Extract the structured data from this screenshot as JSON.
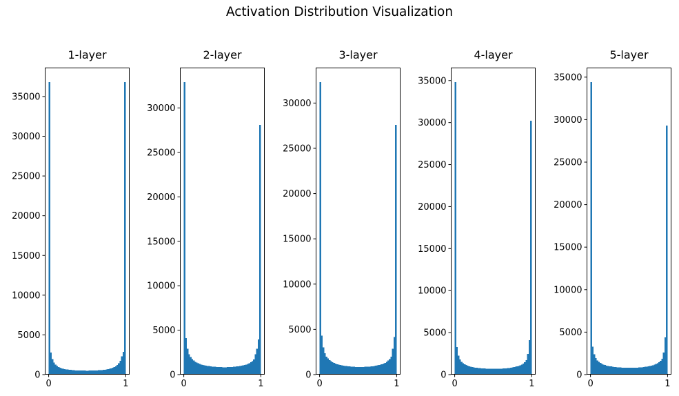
{
  "figure": {
    "title": "Activation Distribution Visualization",
    "background_color": "#ffffff",
    "bar_color": "#1f77b4",
    "frame_color": "#000000",
    "tick_color": "#000000",
    "text_color": "#000000"
  },
  "chart_data": [
    {
      "type": "bar",
      "subtype": "histogram",
      "title": "1-layer",
      "xlabel": "",
      "ylabel": "",
      "grid": false,
      "legend": null,
      "bin_start": 0.0,
      "bin_width": 0.02,
      "xlim": [
        -0.05,
        1.05
      ],
      "ylim": [
        0,
        38640
      ],
      "xticks": [
        0,
        1
      ],
      "yticks": [
        0,
        5000,
        10000,
        15000,
        20000,
        25000,
        30000,
        35000
      ],
      "values": [
        36800,
        2800,
        1950,
        1500,
        1250,
        1080,
        960,
        870,
        800,
        745,
        700,
        665,
        635,
        610,
        590,
        570,
        555,
        540,
        530,
        520,
        512,
        506,
        502,
        500,
        498,
        498,
        500,
        503,
        508,
        515,
        523,
        533,
        545,
        560,
        578,
        600,
        625,
        655,
        690,
        735,
        790,
        855,
        940,
        1050,
        1200,
        1420,
        1750,
        2300,
        2850,
        36800
      ]
    },
    {
      "type": "bar",
      "subtype": "histogram",
      "title": "2-layer",
      "xlabel": "",
      "ylabel": "",
      "grid": false,
      "legend": null,
      "bin_start": 0.0,
      "bin_width": 0.02,
      "xlim": [
        -0.05,
        1.05
      ],
      "ylim": [
        0,
        34545
      ],
      "xticks": [
        0,
        1
      ],
      "yticks": [
        0,
        5000,
        10000,
        15000,
        20000,
        25000,
        30000
      ],
      "values": [
        32900,
        4100,
        2900,
        2300,
        1980,
        1750,
        1580,
        1450,
        1350,
        1270,
        1200,
        1140,
        1090,
        1050,
        1015,
        985,
        955,
        930,
        910,
        890,
        875,
        860,
        850,
        842,
        836,
        832,
        830,
        832,
        836,
        843,
        852,
        864,
        878,
        895,
        915,
        940,
        968,
        1000,
        1040,
        1085,
        1140,
        1205,
        1285,
        1385,
        1520,
        1700,
        2300,
        2900,
        3950,
        28100
      ]
    },
    {
      "type": "bar",
      "subtype": "histogram",
      "title": "3-layer",
      "xlabel": "",
      "ylabel": "",
      "grid": false,
      "legend": null,
      "bin_start": 0.0,
      "bin_width": 0.02,
      "xlim": [
        -0.05,
        1.05
      ],
      "ylim": [
        0,
        33915
      ],
      "xticks": [
        0,
        1
      ],
      "yticks": [
        0,
        5000,
        10000,
        15000,
        20000,
        25000,
        30000
      ],
      "values": [
        32300,
        4300,
        3000,
        2350,
        2000,
        1780,
        1600,
        1470,
        1370,
        1290,
        1220,
        1160,
        1110,
        1065,
        1030,
        1000,
        970,
        945,
        925,
        905,
        890,
        875,
        865,
        857,
        851,
        848,
        846,
        848,
        852,
        858,
        868,
        880,
        894,
        912,
        932,
        956,
        985,
        1018,
        1058,
        1105,
        1160,
        1228,
        1310,
        1413,
        1545,
        1720,
        1965,
        2860,
        4150,
        27600
      ]
    },
    {
      "type": "bar",
      "subtype": "histogram",
      "title": "4-layer",
      "xlabel": "",
      "ylabel": "",
      "grid": false,
      "legend": null,
      "bin_start": 0.0,
      "bin_width": 0.02,
      "xlim": [
        -0.05,
        1.05
      ],
      "ylim": [
        0,
        36540
      ],
      "xticks": [
        0,
        1
      ],
      "yticks": [
        0,
        5000,
        10000,
        15000,
        20000,
        25000,
        30000,
        35000
      ],
      "values": [
        34800,
        3300,
        2250,
        1800,
        1530,
        1360,
        1230,
        1130,
        1060,
        1000,
        950,
        905,
        870,
        840,
        812,
        790,
        770,
        752,
        737,
        724,
        713,
        705,
        698,
        693,
        690,
        689,
        690,
        693,
        698,
        705,
        715,
        727,
        741,
        758,
        778,
        800,
        826,
        856,
        892,
        934,
        984,
        1044,
        1118,
        1210,
        1330,
        1490,
        1720,
        2480,
        4100,
        30200
      ]
    },
    {
      "type": "bar",
      "subtype": "histogram",
      "title": "5-layer",
      "xlabel": "",
      "ylabel": "",
      "grid": false,
      "legend": null,
      "bin_start": 0.0,
      "bin_width": 0.02,
      "xlim": [
        -0.05,
        1.05
      ],
      "ylim": [
        0,
        36120
      ],
      "xticks": [
        0,
        1
      ],
      "yticks": [
        0,
        5000,
        10000,
        15000,
        20000,
        25000,
        30000,
        35000
      ],
      "values": [
        34400,
        3300,
        2400,
        1950,
        1680,
        1500,
        1370,
        1270,
        1195,
        1130,
        1075,
        1030,
        990,
        958,
        930,
        905,
        885,
        866,
        850,
        837,
        826,
        817,
        810,
        805,
        802,
        800,
        801,
        804,
        809,
        816,
        826,
        838,
        852,
        870,
        890,
        914,
        942,
        974,
        1012,
        1056,
        1108,
        1170,
        1246,
        1340,
        1460,
        1620,
        1850,
        2600,
        4400,
        29300
      ]
    }
  ]
}
